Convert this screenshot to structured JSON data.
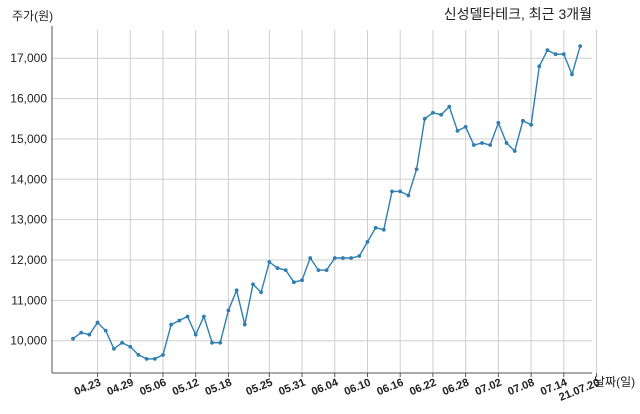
{
  "chart_data": {
    "type": "line",
    "title": "신성델타테크, 최근 3개월",
    "xlabel": "날짜(일)",
    "ylabel": "주가(원)",
    "ylim": [
      9200,
      17700
    ],
    "yticks": [
      10000,
      11000,
      12000,
      13000,
      14000,
      15000,
      16000,
      17000
    ],
    "ytick_labels": [
      "10,000",
      "11,000",
      "12,000",
      "13,000",
      "14,000",
      "15,000",
      "16,000",
      "17,000"
    ],
    "xtick_labels": [
      "04.23",
      "04.29",
      "05.06",
      "05.12",
      "05.18",
      "05.25",
      "05.31",
      "06.04",
      "06.10",
      "06.16",
      "06.22",
      "06.28",
      "07.02",
      "07.08",
      "07.14",
      "21.07.20"
    ],
    "xtick_index": [
      3,
      7,
      11,
      15,
      19,
      24,
      28,
      32,
      36,
      40,
      44,
      48,
      52,
      56,
      60,
      64
    ],
    "grid": true,
    "line_color": "#2e7fb0",
    "series": [
      {
        "values": [
          10050,
          10200,
          10150,
          10450,
          10250,
          9800,
          9950,
          9850,
          9650,
          9550,
          9550,
          9650,
          10400,
          10500,
          10600,
          10150,
          10600,
          9950,
          9950,
          10750,
          11250,
          10400,
          11400,
          11200,
          11950,
          11800,
          11750,
          11450,
          11500,
          12050,
          11750,
          11750,
          12050,
          12050,
          12050,
          12100,
          12450,
          12800,
          12750,
          13700,
          13700,
          13600,
          14250,
          15500,
          15650,
          15600,
          15800,
          15200,
          15300,
          14850,
          14900,
          14850,
          15400,
          14900,
          14700,
          15450,
          15350,
          16800,
          17200,
          17100,
          17100,
          16600,
          17300
        ]
      }
    ]
  }
}
